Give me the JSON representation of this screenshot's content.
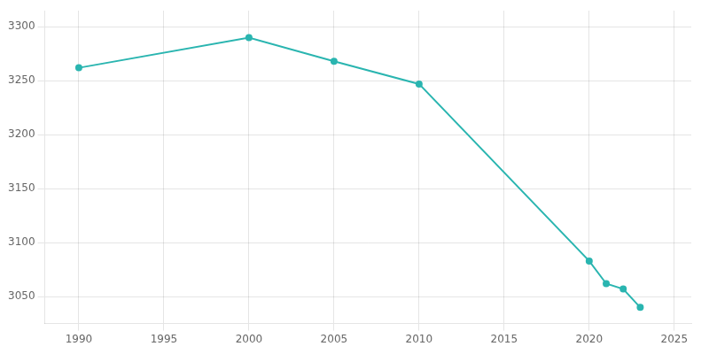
{
  "chart_data": {
    "type": "line",
    "x": [
      1990,
      2000,
      2005,
      2010,
      2020,
      2021,
      2022,
      2023
    ],
    "values": [
      3262,
      3290,
      3268,
      3247,
      3083,
      3062,
      3057,
      3040
    ],
    "color": "#2ab5b0",
    "marker": "o",
    "xlim": [
      1988,
      2026
    ],
    "ylim": [
      3025,
      3315
    ],
    "xticks": [
      1990,
      1995,
      2000,
      2005,
      2010,
      2015,
      2020,
      2025
    ],
    "yticks": [
      3050,
      3100,
      3150,
      3200,
      3250,
      3300
    ],
    "grid": true
  }
}
